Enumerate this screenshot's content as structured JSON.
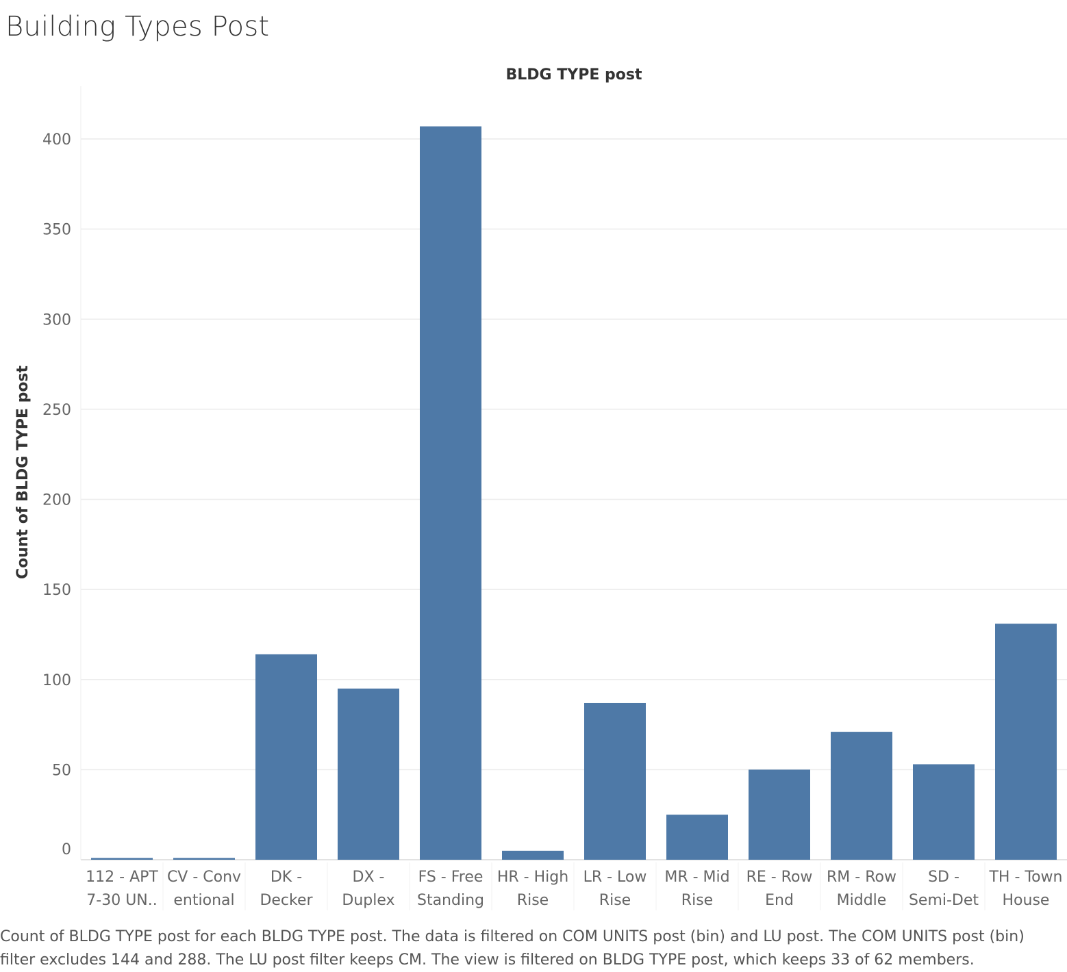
{
  "page_title": "Building Types Post",
  "caption": "Count of BLDG TYPE post for each BLDG TYPE post. The data is filtered on COM UNITS post (bin) and LU post. The COM UNITS post (bin) filter excludes 144 and 288. The LU post filter keeps CM. The view is filtered on BLDG TYPE post, which keeps 33 of 62 members.",
  "chart_data": {
    "type": "bar",
    "title": "BLDG TYPE post",
    "xlabel": "",
    "ylabel": "Count of BLDG TYPE post",
    "categories": [
      [
        "112 - APT",
        "7-30 UN.."
      ],
      [
        "CV - Conv",
        "entional"
      ],
      [
        "DK -",
        "Decker"
      ],
      [
        "DX -",
        "Duplex"
      ],
      [
        "FS - Free",
        "Standing"
      ],
      [
        "HR - High",
        "Rise"
      ],
      [
        "LR - Low",
        "Rise"
      ],
      [
        "MR - Mid",
        "Rise"
      ],
      [
        "RE - Row",
        "End"
      ],
      [
        "RM - Row",
        "Middle"
      ],
      [
        "SD -",
        "Semi-Det"
      ],
      [
        "TH - Town",
        "House"
      ]
    ],
    "values": [
      1,
      1,
      114,
      95,
      407,
      5,
      87,
      25,
      50,
      71,
      53,
      131
    ],
    "ylim": [
      0,
      430
    ],
    "yticks": [
      0,
      50,
      100,
      150,
      200,
      250,
      300,
      350,
      400
    ],
    "grid": true,
    "colors": {
      "bar": "#4e79a7",
      "grid": "#ececec",
      "axis": "#d9d9d9"
    }
  }
}
